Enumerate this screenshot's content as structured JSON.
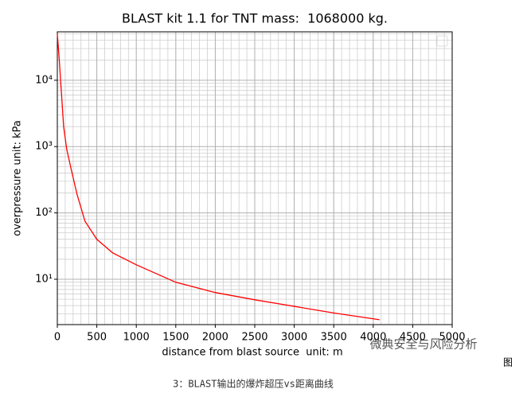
{
  "chart_data": {
    "type": "line",
    "title": "BLAST kit 1.1 for TNT mass:  1068000 kg.",
    "x_label": "distance from blast source  unit: m",
    "y_label": "overpressure unit: kPa",
    "x": [
      0,
      25,
      50,
      80,
      120,
      180,
      250,
      350,
      500,
      700,
      1000,
      1500,
      2000,
      2500,
      3000,
      3500,
      4080
    ],
    "series": [
      {
        "color": "#ff0000",
        "values": [
          50000,
          20000,
          7000,
          2000,
          900,
          430,
          190,
          75,
          40,
          25,
          16.5,
          9,
          6.3,
          4.9,
          3.9,
          3.1,
          2.45
        ]
      }
    ],
    "xlim": [
      0,
      5000
    ],
    "xticks": [
      0,
      500,
      1000,
      1500,
      2000,
      2500,
      3000,
      3500,
      4000,
      4500,
      5000
    ],
    "ylim": [
      2.07,
      53700
    ],
    "y_scale": "log",
    "yticks": [
      {
        "value": 10,
        "label": "10¹"
      },
      {
        "value": 100,
        "label": "10²"
      },
      {
        "value": 1000,
        "label": "10³"
      },
      {
        "value": 10000,
        "label": "10⁴"
      }
    ],
    "grid": true
  },
  "caption": "3：BLAST输出的爆炸超压vs距离曲线",
  "watermark": "微典安全与风险分析",
  "figure_label": "图"
}
